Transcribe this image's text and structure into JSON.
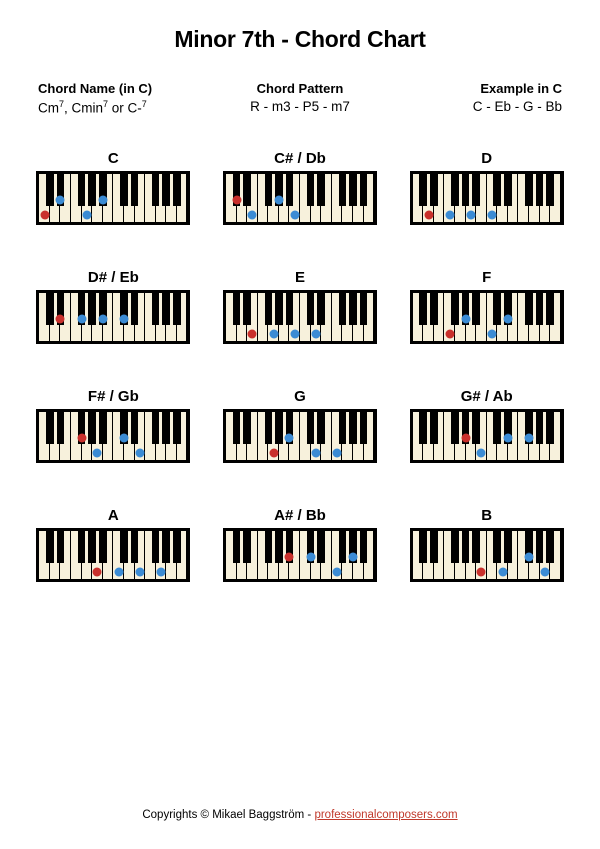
{
  "title": "Minor 7th - Chord Chart",
  "info": {
    "name_label": "Chord Name (in C)",
    "name_value_html": "Cm<sup>7</sup>, Cmin<sup>7</sup> or C-<sup>7</sup>",
    "pattern_label": "Chord Pattern",
    "pattern_value": "R - m3 - P5 - m7",
    "example_label": "Example in C",
    "example_value": "C - Eb - G - Bb"
  },
  "style": {
    "n_white_keys": 14,
    "white_key_color": "#f7f1dc",
    "black_key_color": "#000000",
    "root_dot_color": "#c9302c",
    "other_dot_color": "#3b8bd4",
    "keyboard_border": "#000000",
    "black_key_pattern": [
      0,
      1,
      3,
      4,
      5,
      7,
      8,
      10,
      11,
      12
    ]
  },
  "chords": [
    {
      "label": "C",
      "notes": [
        {
          "t": "w",
          "i": 0,
          "r": true
        },
        {
          "t": "b",
          "i": 1,
          "r": false
        },
        {
          "t": "w",
          "i": 4,
          "r": false
        },
        {
          "t": "b",
          "i": 5,
          "r": false
        }
      ]
    },
    {
      "label": "C# / Db",
      "notes": [
        {
          "t": "b",
          "i": 0,
          "r": true
        },
        {
          "t": "w",
          "i": 2,
          "r": false
        },
        {
          "t": "b",
          "i": 4,
          "r": false
        },
        {
          "t": "w",
          "i": 6,
          "r": false
        }
      ]
    },
    {
      "label": "D",
      "notes": [
        {
          "t": "w",
          "i": 1,
          "r": true
        },
        {
          "t": "w",
          "i": 3,
          "r": false
        },
        {
          "t": "w",
          "i": 5,
          "r": false
        },
        {
          "t": "w",
          "i": 7,
          "r": false
        }
      ]
    },
    {
      "label": "D# / Eb",
      "notes": [
        {
          "t": "b",
          "i": 1,
          "r": true
        },
        {
          "t": "b",
          "i": 3,
          "r": false
        },
        {
          "t": "b",
          "i": 5,
          "r": false
        },
        {
          "t": "b",
          "i": 7,
          "r": false
        }
      ]
    },
    {
      "label": "E",
      "notes": [
        {
          "t": "w",
          "i": 2,
          "r": true
        },
        {
          "t": "w",
          "i": 4,
          "r": false
        },
        {
          "t": "w",
          "i": 6,
          "r": false
        },
        {
          "t": "w",
          "i": 8,
          "r": false
        }
      ]
    },
    {
      "label": "F",
      "notes": [
        {
          "t": "w",
          "i": 3,
          "r": true
        },
        {
          "t": "b",
          "i": 4,
          "r": false
        },
        {
          "t": "w",
          "i": 7,
          "r": false
        },
        {
          "t": "b",
          "i": 8,
          "r": false
        }
      ]
    },
    {
      "label": "F# / Gb",
      "notes": [
        {
          "t": "b",
          "i": 3,
          "r": true
        },
        {
          "t": "w",
          "i": 5,
          "r": false
        },
        {
          "t": "b",
          "i": 7,
          "r": false
        },
        {
          "t": "w",
          "i": 9,
          "r": false
        }
      ]
    },
    {
      "label": "G",
      "notes": [
        {
          "t": "w",
          "i": 4,
          "r": true
        },
        {
          "t": "b",
          "i": 5,
          "r": false
        },
        {
          "t": "w",
          "i": 8,
          "r": false
        },
        {
          "t": "w",
          "i": 10,
          "r": false
        }
      ]
    },
    {
      "label": "G# / Ab",
      "notes": [
        {
          "t": "b",
          "i": 4,
          "r": true
        },
        {
          "t": "w",
          "i": 6,
          "r": false
        },
        {
          "t": "b",
          "i": 8,
          "r": false
        },
        {
          "t": "b",
          "i": 10,
          "r": false
        }
      ]
    },
    {
      "label": "A",
      "notes": [
        {
          "t": "w",
          "i": 5,
          "r": true
        },
        {
          "t": "w",
          "i": 7,
          "r": false
        },
        {
          "t": "w",
          "i": 9,
          "r": false
        },
        {
          "t": "w",
          "i": 11,
          "r": false
        }
      ]
    },
    {
      "label": "A# / Bb",
      "notes": [
        {
          "t": "b",
          "i": 5,
          "r": true
        },
        {
          "t": "b",
          "i": 7,
          "r": false
        },
        {
          "t": "w",
          "i": 10,
          "r": false
        },
        {
          "t": "b",
          "i": 11,
          "r": false
        }
      ]
    },
    {
      "label": "B",
      "notes": [
        {
          "t": "w",
          "i": 6,
          "r": true
        },
        {
          "t": "w",
          "i": 8,
          "r": false
        },
        {
          "t": "b",
          "i": 10,
          "r": false
        },
        {
          "t": "w",
          "i": 12,
          "r": false
        }
      ]
    }
  ],
  "footer": {
    "text": "Copyrights © Mikael Baggström - ",
    "link_text": "professionalcomposers.com",
    "link_color": "#c0392b"
  }
}
